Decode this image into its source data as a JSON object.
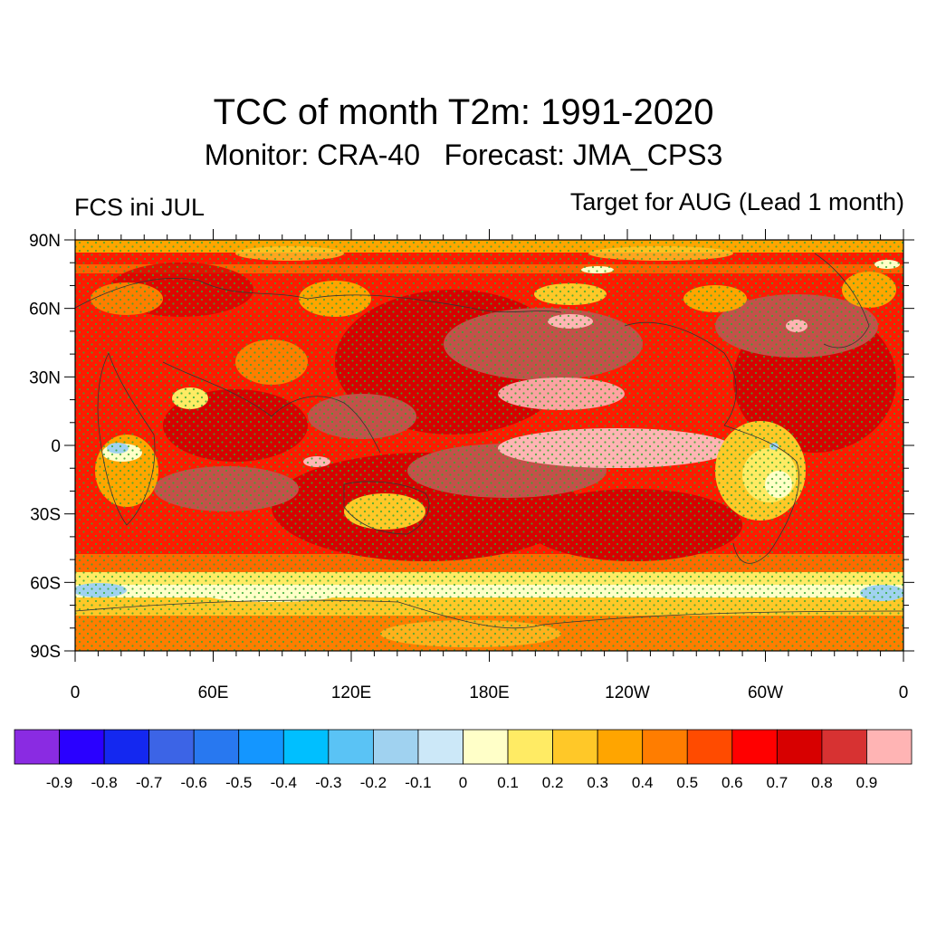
{
  "title": "TCC of month T2m: 1991-2020",
  "subtitle": "Monitor: CRA-40   Forecast: JMA_CPS3",
  "left_label": "FCS ini JUL",
  "right_label": "Target for AUG (Lead 1 month)",
  "map": {
    "projection": "cylindrical-equidistant",
    "lon_range": [
      0,
      360
    ],
    "lat_range": [
      -90,
      90
    ],
    "lat_ticks": [
      {
        "lat": 90,
        "label": "90N"
      },
      {
        "lat": 60,
        "label": "60N"
      },
      {
        "lat": 30,
        "label": "30N"
      },
      {
        "lat": 0,
        "label": "0"
      },
      {
        "lat": -30,
        "label": "30S"
      },
      {
        "lat": -60,
        "label": "60S"
      },
      {
        "lat": -90,
        "label": "90S"
      }
    ],
    "lon_ticks": [
      {
        "lon": 0,
        "label": "0"
      },
      {
        "lon": 60,
        "label": "60E"
      },
      {
        "lon": 120,
        "label": "120E"
      },
      {
        "lon": 180,
        "label": "180E"
      },
      {
        "lon": 240,
        "label": "120W"
      },
      {
        "lon": 300,
        "label": "60W"
      },
      {
        "lon": 360,
        "label": "0"
      }
    ],
    "stipple_color": "#33aa33"
  },
  "colorbar": {
    "colors": [
      "#8a2be2",
      "#2a00ff",
      "#1428f0",
      "#3c64e6",
      "#2878f0",
      "#1496ff",
      "#00bfff",
      "#5ac3f5",
      "#a0d2f0",
      "#cce8f8",
      "#ffffc8",
      "#ffeb64",
      "#ffc828",
      "#ffa500",
      "#ff7d00",
      "#ff4b00",
      "#ff0000",
      "#d70000",
      "#d73232",
      "#ffb4b4"
    ],
    "labels": [
      "-0.9",
      "-0.8",
      "-0.7",
      "-0.6",
      "-0.5",
      "-0.4",
      "-0.3",
      "-0.2",
      "-0.1",
      "0",
      "0.1",
      "0.2",
      "0.3",
      "0.4",
      "0.5",
      "0.6",
      "0.7",
      "0.8",
      "0.9"
    ]
  }
}
